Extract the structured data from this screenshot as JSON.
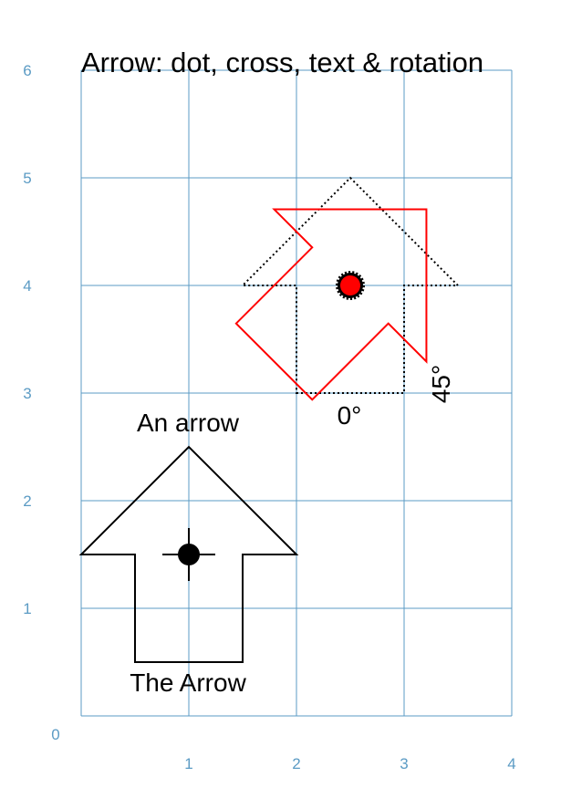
{
  "title": "Arrow: dot, cross, text & rotation",
  "grid": {
    "x_range": [
      0,
      4
    ],
    "y_range": [
      0,
      6
    ],
    "x_ticks": [
      "0",
      "1",
      "2",
      "3",
      "4"
    ],
    "y_ticks": [
      "1",
      "2",
      "3",
      "4",
      "5",
      "6"
    ],
    "color": "#5b9bc4"
  },
  "shapes": {
    "big_arrow": {
      "points": [
        [
          0.5,
          0.5
        ],
        [
          1.5,
          0.5
        ],
        [
          1.5,
          1.5
        ],
        [
          2,
          1.5
        ],
        [
          1,
          2.5
        ],
        [
          0,
          1.5
        ],
        [
          0.5,
          1.5
        ]
      ],
      "stroke": "#000000",
      "style": "solid",
      "center": [
        1,
        1.5
      ],
      "center_marker": "dot-with-cross",
      "label_top": "An arrow",
      "label_bottom": "The Arrow"
    },
    "dotted_arrow": {
      "points": [
        [
          2,
          3
        ],
        [
          3,
          3
        ],
        [
          3,
          4
        ],
        [
          3.5,
          4
        ],
        [
          2.5,
          5
        ],
        [
          1.5,
          4
        ],
        [
          2,
          4
        ]
      ],
      "stroke": "#000000",
      "style": "dotted",
      "rotation_label": "0°"
    },
    "rotated_arrow": {
      "pivot": [
        2.5,
        4
      ],
      "rotation_deg": -45,
      "stroke": "#ff0000",
      "style": "solid",
      "rotation_label": "45°"
    },
    "red_dot": {
      "center": [
        2.5,
        4
      ],
      "fill": "#ff0000",
      "outline": "#000000"
    }
  }
}
